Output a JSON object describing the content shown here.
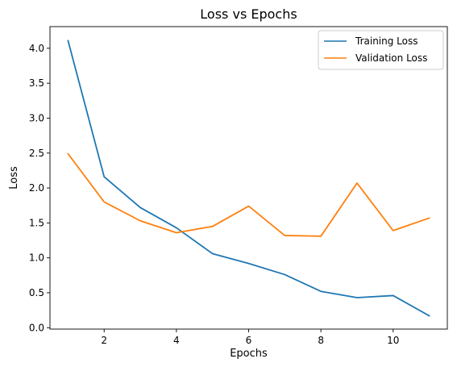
{
  "chart_data": {
    "type": "line",
    "title": "Loss vs Epochs",
    "xlabel": "Epochs",
    "ylabel": "Loss",
    "xlim": [
      0.5,
      11.5
    ],
    "ylim": [
      -0.02,
      4.31
    ],
    "xticks": [
      2,
      4,
      6,
      8,
      10
    ],
    "yticks": [
      0.0,
      0.5,
      1.0,
      1.5,
      2.0,
      2.5,
      3.0,
      3.5,
      4.0
    ],
    "ytick_labels": [
      "0.0",
      "0.5",
      "1.0",
      "1.5",
      "2.0",
      "2.5",
      "3.0",
      "3.5",
      "4.0"
    ],
    "x": [
      1,
      2,
      3,
      4,
      5,
      6,
      7,
      8,
      9,
      10,
      11
    ],
    "series": [
      {
        "name": "Training Loss",
        "color": "#1f77b4",
        "values": [
          4.11,
          2.16,
          1.72,
          1.43,
          1.06,
          0.92,
          0.76,
          0.52,
          0.43,
          0.46,
          0.17
        ]
      },
      {
        "name": "Validation Loss",
        "color": "#ff7f0e",
        "values": [
          2.49,
          1.8,
          1.53,
          1.36,
          1.45,
          1.74,
          1.32,
          1.31,
          2.07,
          1.39,
          1.57
        ]
      }
    ],
    "legend_position": "top-right",
    "grid": false
  }
}
